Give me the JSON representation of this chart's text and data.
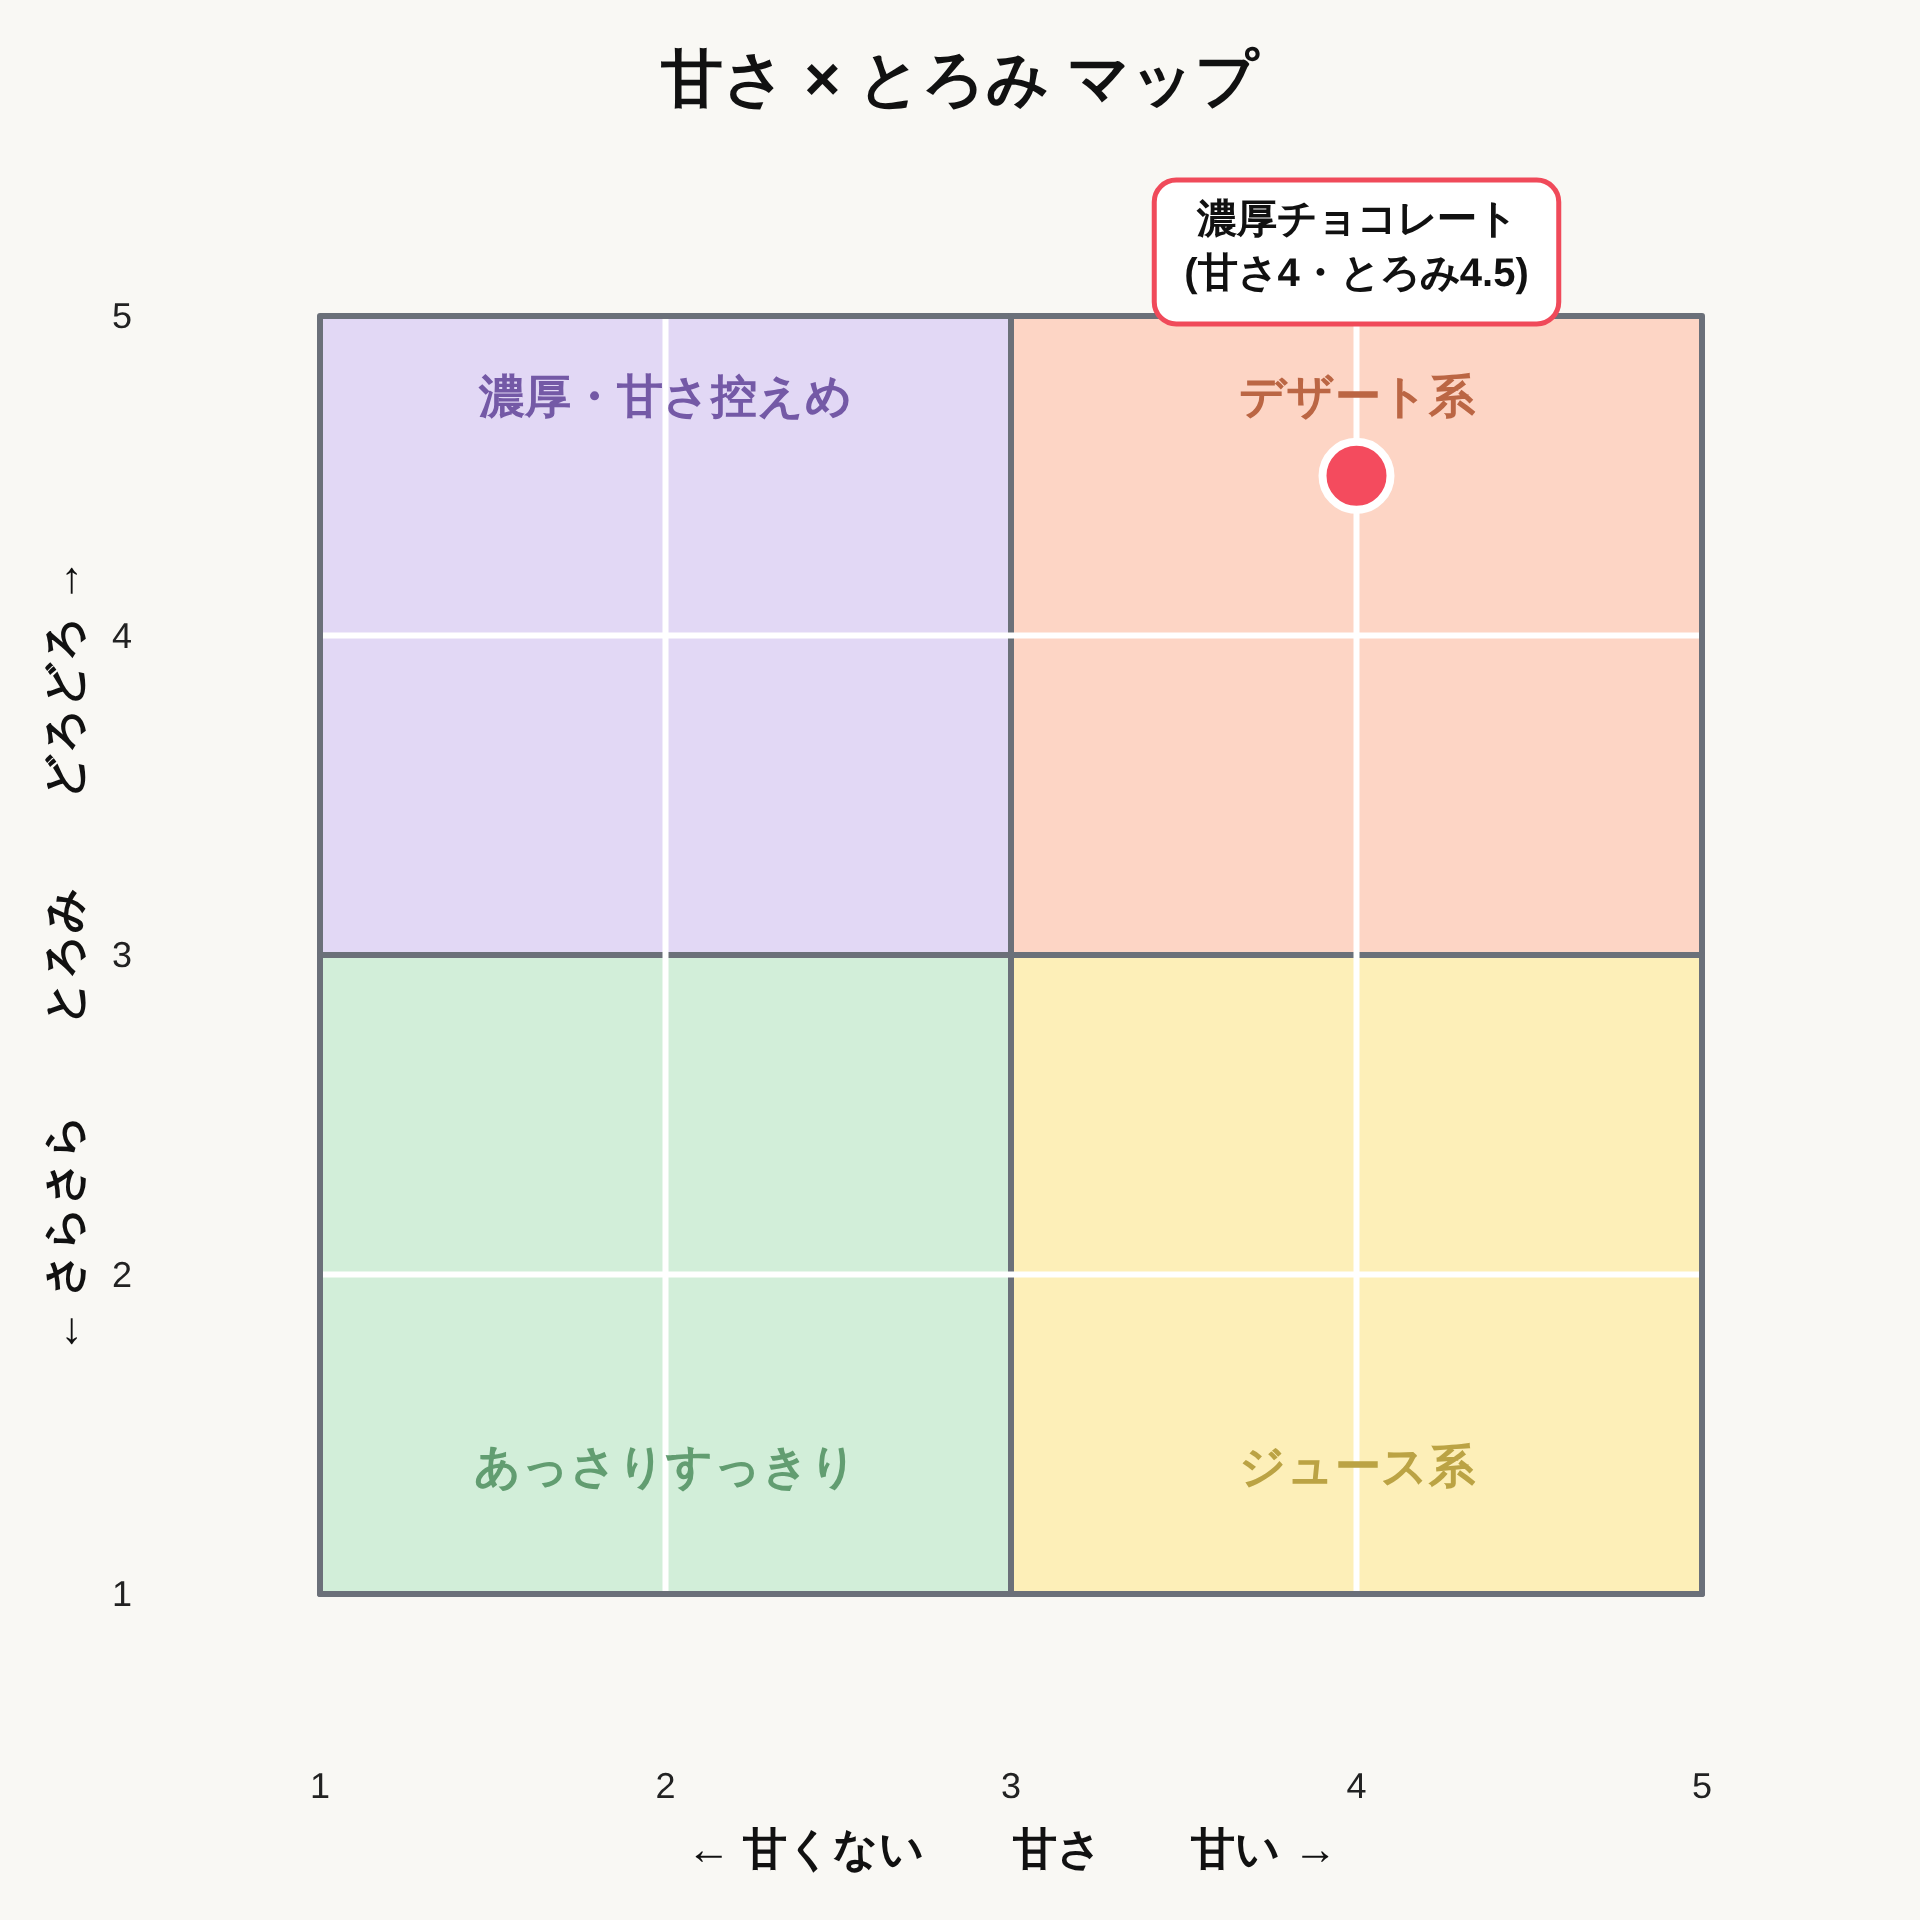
{
  "chart_data": {
    "type": "scatter",
    "title": "甘さ × とろみ マップ",
    "xlabel": "← 甘くない　　甘さ　　甘い →",
    "ylabel": "← さらさら　　とろみ　　どろどろ →",
    "xlim": [
      1,
      5
    ],
    "ylim": [
      1,
      5
    ],
    "xticks": [
      1,
      2,
      3,
      4,
      5
    ],
    "yticks": [
      1,
      2,
      3,
      4,
      5
    ],
    "grid": true,
    "series": [
      {
        "type": "area",
        "name": "濃厚・甘さ控えめ",
        "color": "#e2d8f5",
        "x": [
          1,
          3
        ],
        "values": [
          5,
          5
        ]
      },
      {
        "type": "area",
        "name": "デザート系",
        "color": "#fdd5c5",
        "x": [
          3,
          5
        ],
        "values": [
          5,
          5
        ]
      },
      {
        "type": "area",
        "name": "あっさりすっきり",
        "color": "#d2eed9",
        "x": [
          1,
          3
        ],
        "values": [
          3,
          3
        ]
      },
      {
        "type": "area",
        "name": "ジュース系",
        "color": "#fdefb8",
        "x": [
          3,
          5
        ],
        "values": [
          3,
          3
        ]
      },
      {
        "color": "#f44b5e",
        "x": [
          4
        ],
        "values": [
          4.5
        ],
        "marker": "circle"
      }
    ],
    "annotations": [
      "濃厚チョコレート\n(甘さ4・とろみ4.5)"
    ]
  }
}
